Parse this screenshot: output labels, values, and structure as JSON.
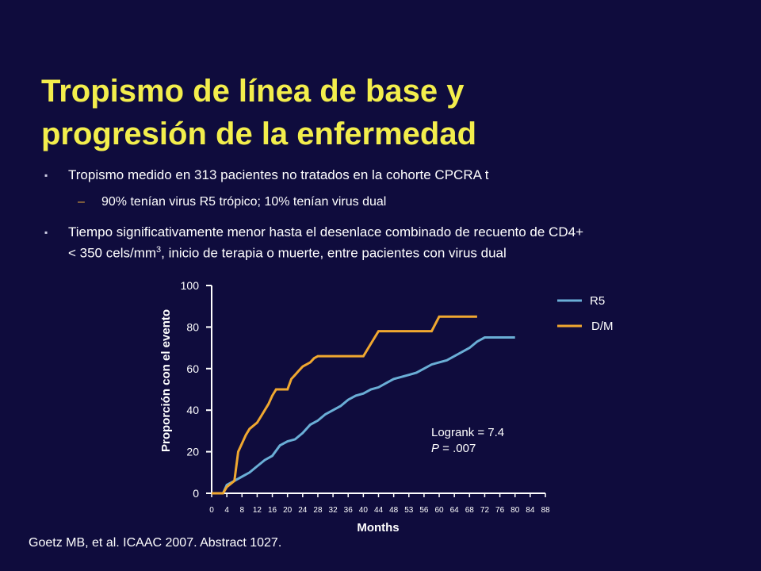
{
  "slide": {
    "title_line1": "Tropismo de línea de base y",
    "title_line2": "progresión de la enfermedad",
    "bullet1": "Tropismo medido en 313 pacientes no tratados en la cohorte CPCRA t",
    "sub1": "90% tenían virus R5 trópico; 10% tenían virus dual",
    "bullet2_line1": "Tiempo significativamente menor hasta el desenlace combinado de recuento de CD4+",
    "bullet2_line2_a": "< 350 cels/mm",
    "bullet2_line2_sup": "3",
    "bullet2_line2_b": ", inicio de terapia o muerte, entre pacientes con virus dual",
    "bullet_mark": "▪",
    "dash_mark": "–",
    "source": "Goetz MB, et al. ICAAC 2007. Abstract 1027."
  },
  "chart_data": {
    "type": "line",
    "ylabel": "Proporción con el evento",
    "xlabel": "Months",
    "ylim": [
      0,
      100
    ],
    "xlim": [
      0,
      88
    ],
    "yticks": [
      "0",
      "20",
      "40",
      "60",
      "80",
      "100"
    ],
    "xticks": [
      "0",
      "4",
      "8",
      "12",
      "16",
      "20",
      "24",
      "28",
      "32",
      "36",
      "40",
      "44",
      "48",
      "53",
      "56",
      "60",
      "64",
      "68",
      "72",
      "76",
      "80",
      "84",
      "88"
    ],
    "annotation_line1": "Logrank = 7.4",
    "annotation_p": "P",
    "annotation_line2": " = .007",
    "series": [
      {
        "name": "R5",
        "color": "#6aaed6",
        "points": [
          [
            0,
            0
          ],
          [
            3,
            0
          ],
          [
            4,
            4
          ],
          [
            6,
            6
          ],
          [
            8,
            8
          ],
          [
            10,
            10
          ],
          [
            12,
            13
          ],
          [
            14,
            16
          ],
          [
            16,
            18
          ],
          [
            18,
            23
          ],
          [
            20,
            25
          ],
          [
            22,
            26
          ],
          [
            24,
            29
          ],
          [
            26,
            33
          ],
          [
            28,
            35
          ],
          [
            30,
            38
          ],
          [
            32,
            40
          ],
          [
            34,
            42
          ],
          [
            36,
            45
          ],
          [
            38,
            47
          ],
          [
            40,
            48
          ],
          [
            42,
            50
          ],
          [
            44,
            51
          ],
          [
            46,
            53
          ],
          [
            48,
            55
          ],
          [
            50,
            56
          ],
          [
            52,
            57
          ],
          [
            54,
            58
          ],
          [
            56,
            60
          ],
          [
            58,
            62
          ],
          [
            60,
            63
          ],
          [
            62,
            64
          ],
          [
            64,
            66
          ],
          [
            66,
            68
          ],
          [
            68,
            70
          ],
          [
            70,
            73
          ],
          [
            72,
            75
          ],
          [
            74,
            75
          ],
          [
            76,
            75
          ],
          [
            78,
            75
          ],
          [
            80,
            75
          ]
        ]
      },
      {
        "name": "D/M",
        "color": "#f0a830",
        "points": [
          [
            0,
            0
          ],
          [
            3,
            0
          ],
          [
            4,
            3
          ],
          [
            6,
            6
          ],
          [
            7,
            20
          ],
          [
            8,
            24
          ],
          [
            9,
            28
          ],
          [
            10,
            31
          ],
          [
            12,
            34
          ],
          [
            13,
            37
          ],
          [
            14,
            40
          ],
          [
            15,
            43
          ],
          [
            16,
            47
          ],
          [
            17,
            50
          ],
          [
            18,
            50
          ],
          [
            20,
            50
          ],
          [
            21,
            55
          ],
          [
            22,
            57
          ],
          [
            23,
            59
          ],
          [
            24,
            61
          ],
          [
            25,
            62
          ],
          [
            26,
            63
          ],
          [
            27,
            65
          ],
          [
            28,
            66
          ],
          [
            30,
            66
          ],
          [
            32,
            66
          ],
          [
            34,
            66
          ],
          [
            36,
            66
          ],
          [
            38,
            66
          ],
          [
            40,
            66
          ],
          [
            42,
            72
          ],
          [
            44,
            78
          ],
          [
            46,
            78
          ],
          [
            48,
            78
          ],
          [
            50,
            78
          ],
          [
            52,
            78
          ],
          [
            54,
            78
          ],
          [
            56,
            78
          ],
          [
            58,
            78
          ],
          [
            60,
            85
          ],
          [
            62,
            85
          ],
          [
            64,
            85
          ],
          [
            66,
            85
          ],
          [
            68,
            85
          ],
          [
            70,
            85
          ]
        ]
      }
    ],
    "legend_position": "top-right"
  }
}
